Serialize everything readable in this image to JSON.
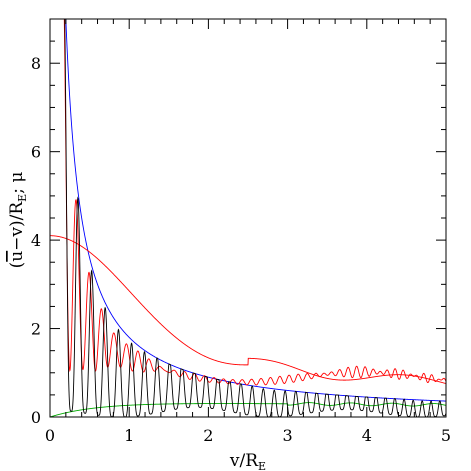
{
  "chart_data": {
    "type": "line",
    "xlabel": "v/R_E",
    "ylabel": "(ū−v)/R_E; μ",
    "xlim": [
      0,
      5
    ],
    "ylim": [
      0,
      9
    ],
    "xticks": [
      "0",
      "1",
      "2",
      "3",
      "4",
      "5"
    ],
    "yticks": [
      "0",
      "2",
      "4",
      "6",
      "8"
    ],
    "grid": false,
    "series": [
      {
        "color": "#0000ff",
        "description_values": {
          "x": [
            0.2,
            0.3,
            0.5,
            0.8,
            1.0,
            1.5,
            2.0,
            2.5,
            3.0,
            3.5,
            4.0,
            4.5,
            5.0
          ],
          "y": [
            9.2,
            6.0,
            3.6,
            2.25,
            1.8,
            1.2,
            0.9,
            0.72,
            0.6,
            0.52,
            0.45,
            0.4,
            0.36
          ]
        }
      },
      {
        "color": "#ff0000",
        "description_values": {
          "x": [
            0.0,
            0.5,
            1.0,
            1.5,
            2.0,
            2.5,
            3.0,
            3.5,
            4.0,
            4.5,
            5.0
          ],
          "y": [
            3.3,
            3.0,
            2.2,
            1.4,
            0.85,
            0.75,
            1.15,
            1.15,
            0.9,
            0.9,
            1.0
          ]
        }
      },
      {
        "color": "#00aa00",
        "description_values": {
          "x": [
            0.0,
            0.5,
            1.0,
            1.5,
            2.0,
            2.5,
            3.0,
            3.5,
            4.0,
            4.5,
            5.0
          ],
          "y": [
            0.0,
            0.2,
            0.3,
            0.3,
            0.3,
            0.3,
            0.3,
            0.28,
            0.25,
            0.22,
            0.2
          ]
        }
      },
      {
        "color": "#ff0000",
        "description_values": {
          "x": [
            0.15,
            0.3,
            0.5,
            1.0,
            1.5,
            2.0,
            2.5,
            3.0,
            4.0,
            5.0
          ],
          "y": [
            8.5,
            5.3,
            3.8,
            2.5,
            1.9,
            1.4,
            1.3,
            1.2,
            1.1,
            1.0
          ]
        }
      },
      {
        "color": "#000000",
        "description_values": {
          "x": [
            0.2,
            0.5,
            1.0,
            1.5,
            1.85,
            2.5,
            3.0,
            3.7,
            4.3,
            5.0
          ],
          "y": [
            8.5,
            3.6,
            1.8,
            1.2,
            1.05,
            0.5,
            0.1,
            0.5,
            0.1,
            0.35
          ]
        }
      }
    ]
  }
}
